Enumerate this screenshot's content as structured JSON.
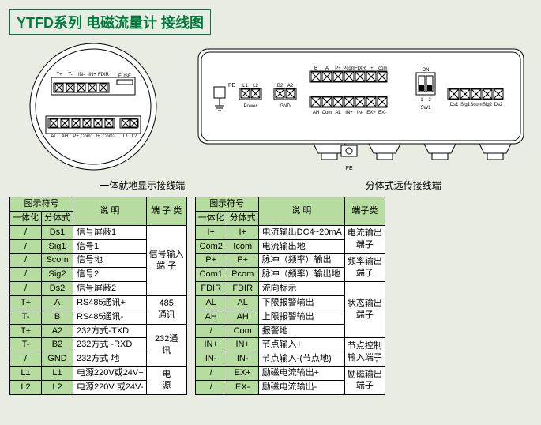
{
  "title": "YTFD系列 电磁流量计 接线图",
  "diagram_left": {
    "caption": "一体就地显示接线端",
    "top_labels": [
      "T+",
      "T-",
      "IN-",
      "IN+",
      "FDIR",
      "",
      "FUSE"
    ],
    "bottom_labels": [
      "AL",
      "AH",
      "P+",
      "Com1",
      "I+",
      "Com2",
      "",
      "L1",
      "L2"
    ]
  },
  "diagram_right": {
    "caption": "分体式远传接线端",
    "groups": {
      "pe": "PE",
      "power_top": [
        "L1",
        "L2"
      ],
      "power_label": "Power",
      "gnd_top": [
        "B2",
        "A2"
      ],
      "gnd_label": "GND",
      "mid_top": [
        "B",
        "A",
        "P+",
        "Pcom",
        "FDIR",
        "I+",
        "Icom"
      ],
      "mid_bottom": [
        "AH",
        "Com",
        "AL",
        "IN+",
        "IN-",
        "EX+",
        "EX-"
      ],
      "dip": {
        "label": "SW1",
        "on": "ON",
        "pos": [
          "1",
          "2"
        ]
      },
      "right_bottom": [
        "Ds1",
        "Sig1",
        "Scom",
        "Sig2",
        "Ds2"
      ]
    },
    "pe_bottom": "PE"
  },
  "table_left": {
    "headers": {
      "sym": "图示符号",
      "desc": "说    明",
      "term": "端 子 类",
      "int": "一体化",
      "split": "分体式"
    },
    "rows": [
      {
        "a": "/",
        "b": "Ds1",
        "c": "信号屏蔽1",
        "grp": "信号输入端    子",
        "span": 5
      },
      {
        "a": "/",
        "b": "Sig1",
        "c": "信号1"
      },
      {
        "a": "/",
        "b": "Scom",
        "c": "信号地"
      },
      {
        "a": "/",
        "b": "Sig2",
        "c": "信号2"
      },
      {
        "a": "/",
        "b": "Ds2",
        "c": "信号屏蔽2"
      },
      {
        "a": "T+",
        "b": "A",
        "c": "RS485通讯+",
        "grp": "485 通讯",
        "span": 2
      },
      {
        "a": "T-",
        "b": "B",
        "c": "RS485通讯-"
      },
      {
        "a": "T+",
        "b": "A2",
        "c": "232方式-TXD",
        "grp": "232通讯",
        "span": 3
      },
      {
        "a": "T-",
        "b": "B2",
        "c": "232方式 -RXD"
      },
      {
        "a": "/",
        "b": "GND",
        "c": "232方式 地"
      },
      {
        "a": "L1",
        "b": "L1",
        "c": "电源220V或24V+",
        "grp": "电    源",
        "span": 2
      },
      {
        "a": "L2",
        "b": "L2",
        "c": "电源220V 或24V-"
      }
    ]
  },
  "table_right": {
    "headers": {
      "sym": "图示符号",
      "desc": "说    明",
      "term": "端子类",
      "int": "一体化",
      "split": "分体式"
    },
    "rows": [
      {
        "a": "I+",
        "b": "I+",
        "c": "电流输出DC4~20mA",
        "grp": "电流输出端子",
        "span": 2
      },
      {
        "a": "Com2",
        "b": "Icom",
        "c": "电流输出地"
      },
      {
        "a": "P+",
        "b": "P+",
        "c": "脉冲（频率）输出",
        "grp": "频率输出端子",
        "span": 2
      },
      {
        "a": "Com1",
        "b": "Pcom",
        "c": "脉冲（频率）输出地"
      },
      {
        "a": "FDIR",
        "b": "FDIR",
        "c": "流向标示",
        "grp": "状态输出端子",
        "span": 4
      },
      {
        "a": "AL",
        "b": "AL",
        "c": "下限报警输出"
      },
      {
        "a": "AH",
        "b": "AH",
        "c": "上限报警输出"
      },
      {
        "a": "/",
        "b": "Com",
        "c": "报警地"
      },
      {
        "a": "IN+",
        "b": "IN+",
        "c": "节点输入+",
        "grp": "节点控制输入端子",
        "span": 2
      },
      {
        "a": "IN-",
        "b": "IN-",
        "c": "节点输入-(节点地)"
      },
      {
        "a": "/",
        "b": "EX+",
        "c": "励磁电流输出+",
        "grp": "励磁输出端子",
        "span": 2
      },
      {
        "a": "/",
        "b": "EX-",
        "c": "励磁电流输出-"
      }
    ]
  },
  "colors": {
    "bg": "#e8ece3",
    "header": "#b6dca0",
    "title": "#007a3d",
    "line": "#000"
  }
}
